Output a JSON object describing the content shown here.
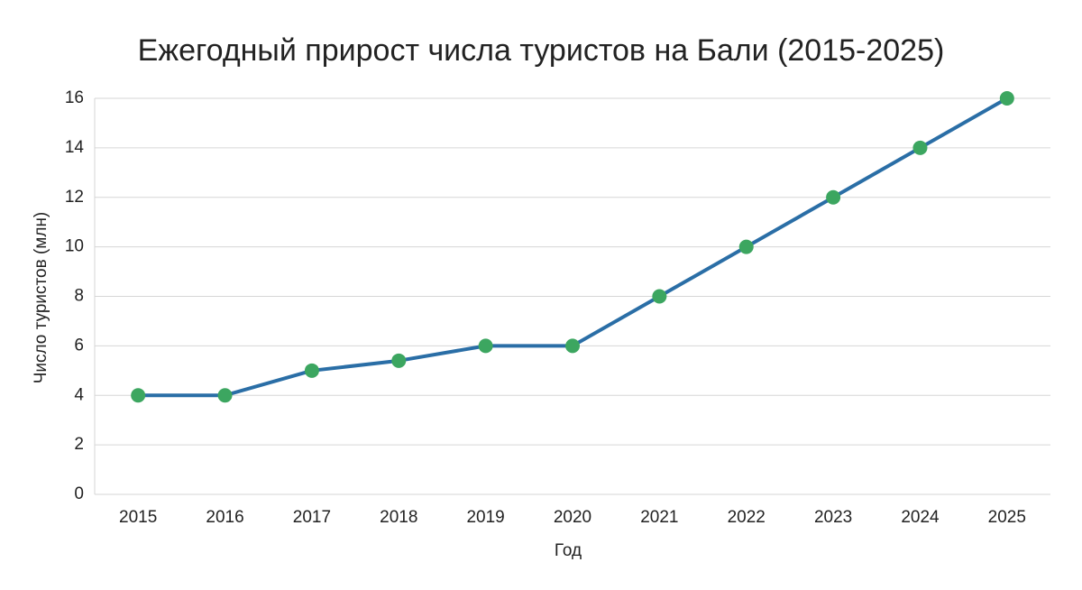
{
  "chart_data": {
    "type": "line",
    "title": "Ежегодный прирост числа туристов на Бали (2015-2025)",
    "xlabel": "Год",
    "ylabel": "Число туристов (млн)",
    "categories": [
      "2015",
      "2016",
      "2017",
      "2018",
      "2019",
      "2020",
      "2021",
      "2022",
      "2023",
      "2024",
      "2025"
    ],
    "series": [
      {
        "color": "#2a6ea6",
        "marker_color": "#3ca660",
        "values": [
          4,
          4,
          5,
          5.4,
          6,
          6,
          8,
          10,
          12,
          14,
          16
        ]
      }
    ],
    "ylim": [
      0,
      16
    ],
    "yticks": [
      0,
      2,
      4,
      6,
      8,
      10,
      12,
      14,
      16
    ],
    "grid": true
  }
}
